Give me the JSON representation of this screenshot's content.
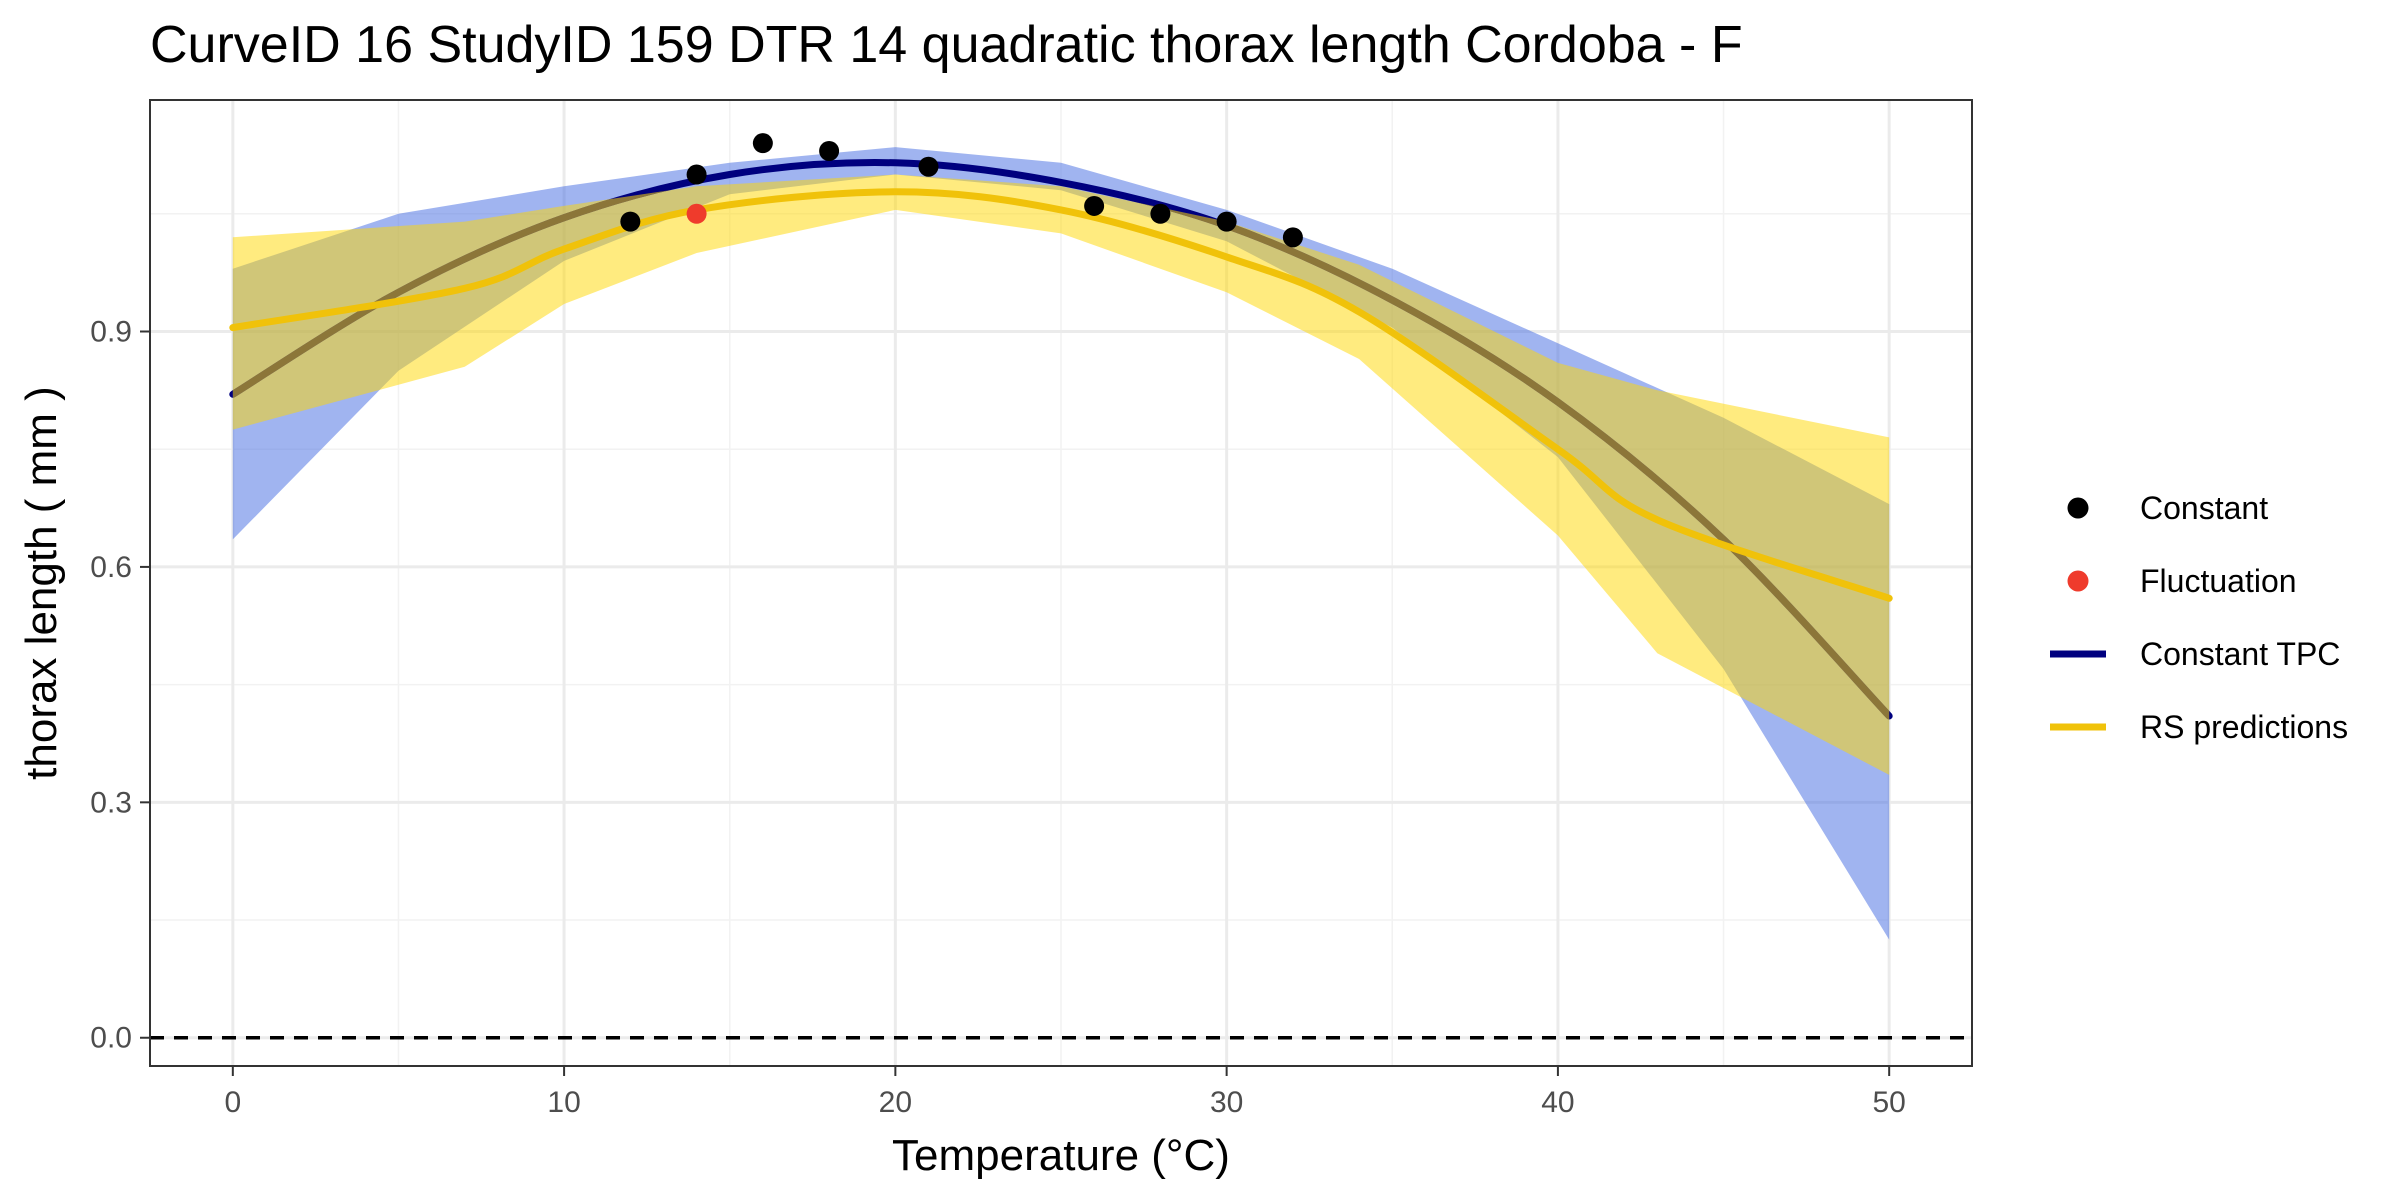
{
  "chart_data": {
    "type": "line",
    "title": "CurveID 16 StudyID 159 DTR 14 quadratic thorax length Cordoba - F",
    "xlabel": "Temperature (°C)",
    "ylabel": "thorax length ( mm )",
    "xlim": [
      -2.5,
      52.5
    ],
    "ylim": [
      -0.036,
      1.195
    ],
    "x_ticks": [
      0,
      10,
      20,
      30,
      40,
      50
    ],
    "x_tick_labels": [
      "0",
      "10",
      "20",
      "30",
      "40",
      "50"
    ],
    "y_ticks": [
      0.0,
      0.3,
      0.6,
      0.9
    ],
    "y_tick_labels": [
      "0.0",
      "0.3",
      "0.6",
      "0.9"
    ],
    "grid": true,
    "reference_line": {
      "y": 0.0,
      "style": "dashed",
      "color": "#000000"
    },
    "series": [
      {
        "name": "Constant",
        "kind": "points",
        "color": "#000000",
        "x": [
          12,
          14,
          16,
          18,
          21,
          26,
          28,
          30,
          32
        ],
        "y": [
          1.04,
          1.1,
          1.14,
          1.13,
          1.11,
          1.06,
          1.05,
          1.04,
          1.02
        ]
      },
      {
        "name": "Fluctuation",
        "kind": "points",
        "color": "#ef3b2c",
        "x": [
          14
        ],
        "y": [
          1.05
        ]
      },
      {
        "name": "Constant TPC",
        "kind": "line",
        "color": "#00007f",
        "x": [
          0,
          5,
          10,
          15,
          20,
          25,
          30,
          35,
          40,
          45,
          50
        ],
        "y": [
          0.82,
          0.95,
          1.045,
          1.1,
          1.115,
          1.09,
          1.035,
          0.94,
          0.81,
          0.635,
          0.41
        ]
      },
      {
        "name": "RS predictions",
        "kind": "line",
        "color": "#f0c20a",
        "x": [
          0,
          7,
          10,
          14,
          20,
          25,
          30,
          34,
          40,
          43,
          50
        ],
        "y": [
          0.905,
          0.955,
          1.005,
          1.055,
          1.078,
          1.055,
          0.995,
          0.925,
          0.75,
          0.66,
          0.56
        ]
      }
    ],
    "ribbons": [
      {
        "name": "Constant TPC interval",
        "color": "#4169e1",
        "opacity": 0.5,
        "x": [
          0,
          5,
          10,
          15,
          20,
          25,
          30,
          35,
          40,
          45,
          50
        ],
        "lower": [
          0.635,
          0.85,
          0.99,
          1.075,
          1.1,
          1.08,
          1.015,
          0.905,
          0.74,
          0.47,
          0.125
        ],
        "upper": [
          0.98,
          1.05,
          1.085,
          1.115,
          1.135,
          1.115,
          1.055,
          0.98,
          0.885,
          0.79,
          0.68
        ]
      },
      {
        "name": "RS predictions interval",
        "color": "#ffd700",
        "opacity": 0.5,
        "x": [
          0,
          7,
          10,
          14,
          20,
          25,
          30,
          34,
          40,
          43,
          50
        ],
        "lower": [
          0.775,
          0.855,
          0.935,
          1.0,
          1.055,
          1.025,
          0.95,
          0.865,
          0.64,
          0.49,
          0.335
        ],
        "upper": [
          1.02,
          1.04,
          1.06,
          1.085,
          1.1,
          1.085,
          1.04,
          0.985,
          0.86,
          0.825,
          0.765
        ]
      }
    ],
    "legend": {
      "placement": "right",
      "items": [
        {
          "label": "Constant",
          "symbol": "point",
          "color": "#000000"
        },
        {
          "label": "Fluctuation",
          "symbol": "point",
          "color": "#ef3b2c"
        },
        {
          "label": "Constant TPC",
          "symbol": "line",
          "color": "#00007f"
        },
        {
          "label": "RS predictions",
          "symbol": "line",
          "color": "#f0c20a"
        }
      ]
    }
  }
}
